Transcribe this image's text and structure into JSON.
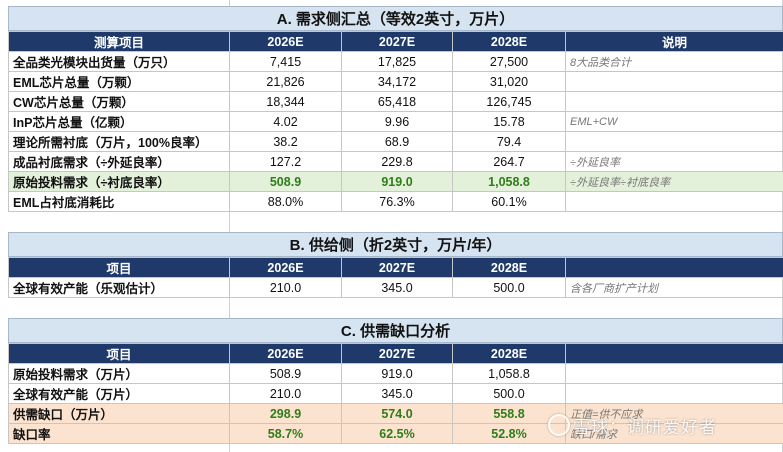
{
  "sectionA": {
    "title": "A. 需求侧汇总（等效2英寸，万片）",
    "headers": [
      "测算项目",
      "2026E",
      "2027E",
      "2028E",
      "说明"
    ],
    "rows": [
      {
        "label": "全品类光模块出货量（万只）",
        "v": [
          "7,415",
          "17,825",
          "27,500"
        ],
        "note": "8大品类合计"
      },
      {
        "label": "EML芯片总量（万颗）",
        "v": [
          "21,826",
          "34,172",
          "31,020"
        ],
        "note": ""
      },
      {
        "label": "CW芯片总量（万颗）",
        "v": [
          "18,344",
          "65,418",
          "126,745"
        ],
        "note": ""
      },
      {
        "label": "InP芯片总量（亿颗）",
        "v": [
          "4.02",
          "9.96",
          "15.78"
        ],
        "note": "EML+CW"
      },
      {
        "label": "理论所需衬底（万片，100%良率）",
        "v": [
          "38.2",
          "68.9",
          "79.4"
        ],
        "note": ""
      },
      {
        "label": "成品衬底需求（÷外延良率）",
        "v": [
          "127.2",
          "229.8",
          "264.7"
        ],
        "note": "÷外延良率"
      },
      {
        "label": "原始投料需求（÷衬底良率）",
        "v": [
          "508.9",
          "919.0",
          "1,058.8"
        ],
        "note": "÷外延良率÷衬底良率"
      },
      {
        "label": "EML占衬底消耗比",
        "v": [
          "88.0%",
          "76.3%",
          "60.1%"
        ],
        "note": ""
      }
    ]
  },
  "sectionB": {
    "title": "B. 供给侧（折2英寸，万片/年）",
    "headers": [
      "项目",
      "2026E",
      "2027E",
      "2028E",
      ""
    ],
    "rows": [
      {
        "label": "全球有效产能（乐观估计）",
        "v": [
          "210.0",
          "345.0",
          "500.0"
        ],
        "note": "含各厂商扩产计划"
      }
    ]
  },
  "sectionC": {
    "title": "C. 供需缺口分析",
    "headers": [
      "项目",
      "2026E",
      "2027E",
      "2028E",
      ""
    ],
    "rows": [
      {
        "label": "原始投料需求（万片）",
        "v": [
          "508.9",
          "919.0",
          "1,058.8"
        ],
        "note": ""
      },
      {
        "label": "全球有效产能（万片）",
        "v": [
          "210.0",
          "345.0",
          "500.0"
        ],
        "note": ""
      },
      {
        "label": "供需缺口（万片）",
        "v": [
          "298.9",
          "574.0",
          "558.8"
        ],
        "note": "正值=供不应求"
      },
      {
        "label": "缺口率",
        "v": [
          "58.7%",
          "62.5%",
          "52.8%"
        ],
        "note": "缺口/需求"
      }
    ]
  },
  "watermark": "雪球：调研爱好者"
}
